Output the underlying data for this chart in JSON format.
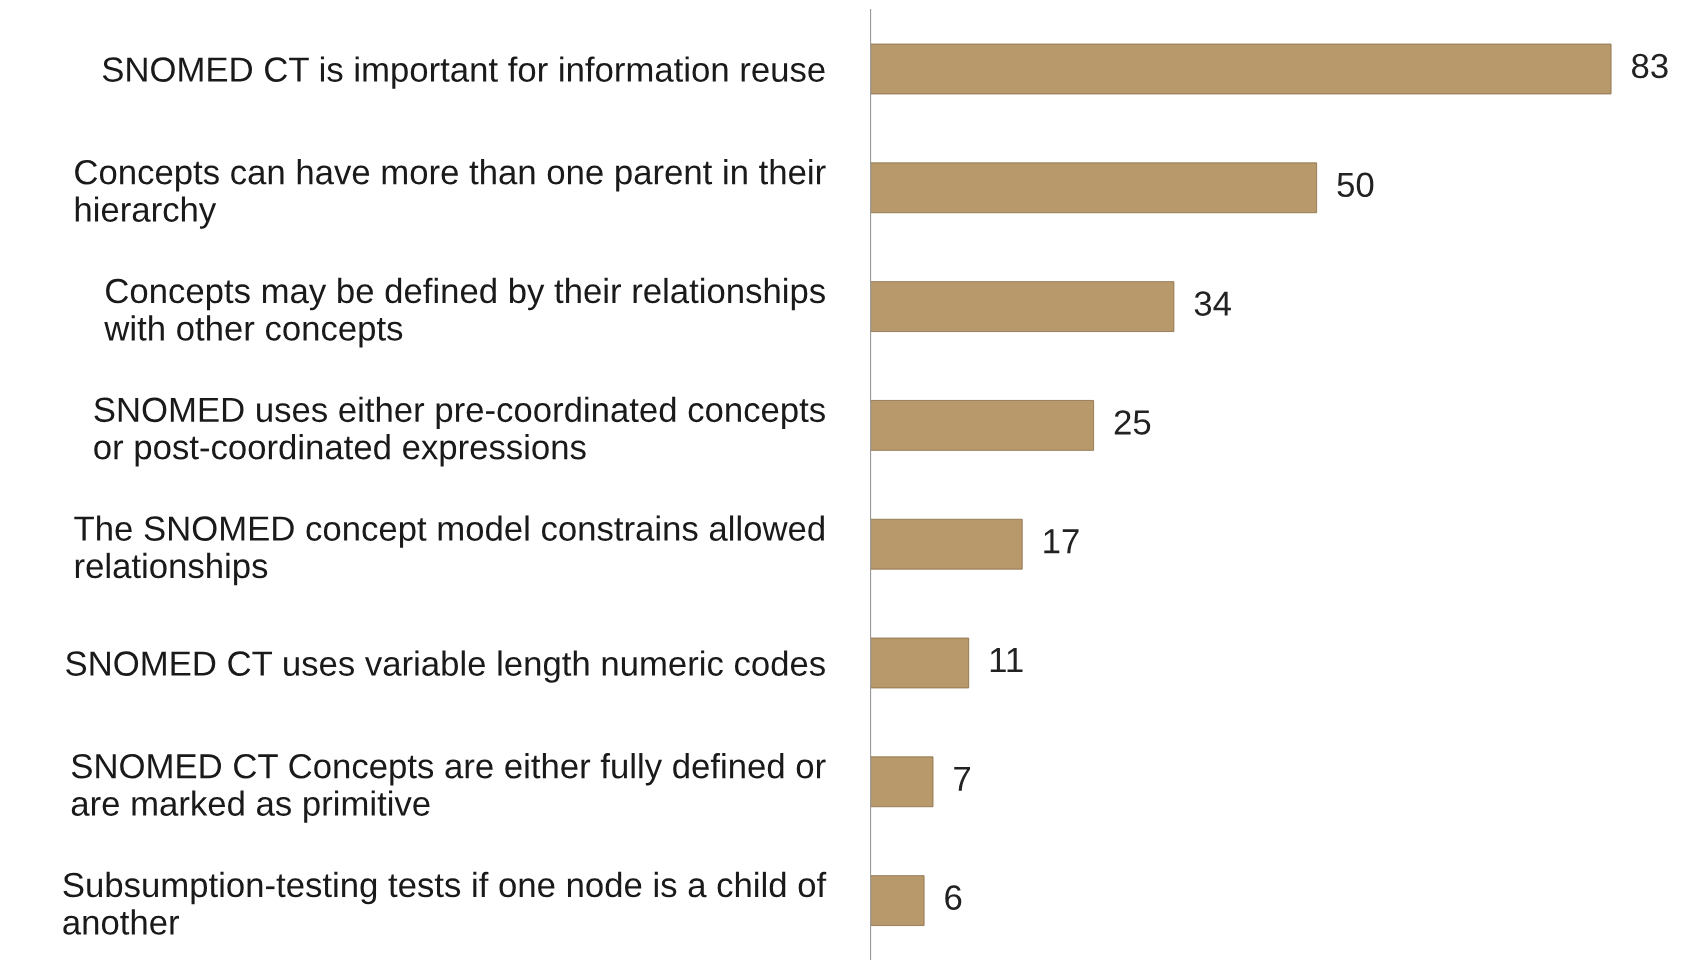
{
  "chart_data": {
    "type": "bar",
    "orientation": "horizontal",
    "categories": [
      "SNOMED CT is important for information reuse",
      "Concepts can have more than one parent in their\nhierarchy",
      "Concepts may be defined by their relationships\nwith other concepts",
      "SNOMED uses either pre-coordinated concepts\nor post-coordinated expressions",
      "The SNOMED concept model constrains allowed\nrelationships",
      "SNOMED CT uses variable length numeric codes",
      "SNOMED CT Concepts are either fully defined or\nare marked as primitive",
      "Subsumption-testing tests if one node is a child of\nanother"
    ],
    "values": [
      83,
      50,
      34,
      25,
      17,
      11,
      7,
      6
    ],
    "color": "#b8996c",
    "data_labels": true,
    "grid": false,
    "legend": false,
    "tick_labels": "y"
  }
}
